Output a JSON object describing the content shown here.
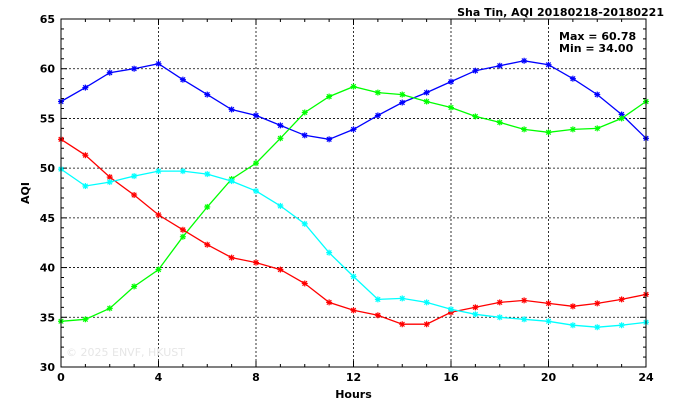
{
  "title": "Sha Tin, AQI 20180218-20180221",
  "stats": {
    "max": "Max = 60.78",
    "min": "Min = 34.00"
  },
  "watermark": "© 2025 ENVF, HKUST",
  "chart_data": {
    "type": "line",
    "title": "Sha Tin, AQI 20180218-20180221",
    "xlabel": "Hours",
    "ylabel": "AQI",
    "xlim": [
      0,
      24
    ],
    "ylim": [
      30,
      65
    ],
    "xticks": [
      0,
      4,
      8,
      12,
      16,
      20,
      24
    ],
    "yticks": [
      30,
      35,
      40,
      45,
      50,
      55,
      60,
      65
    ],
    "grid": true,
    "x": [
      0,
      1,
      2,
      3,
      4,
      5,
      6,
      7,
      8,
      9,
      10,
      11,
      12,
      13,
      14,
      15,
      16,
      17,
      18,
      19,
      20,
      21,
      22,
      23,
      24
    ],
    "series": [
      {
        "color": "#0000ff",
        "values": [
          56.7,
          58.1,
          59.6,
          60.0,
          60.5,
          58.9,
          57.4,
          55.9,
          55.3,
          54.3,
          53.3,
          52.9,
          53.9,
          55.3,
          56.6,
          57.6,
          58.7,
          59.8,
          60.3,
          60.8,
          60.4,
          59.0,
          57.4,
          55.4,
          53.0
        ]
      },
      {
        "color": "#00ff00",
        "values": [
          34.6,
          34.8,
          35.9,
          38.1,
          39.8,
          43.1,
          46.1,
          48.9,
          50.5,
          53.0,
          55.6,
          57.2,
          58.2,
          57.6,
          57.4,
          56.7,
          56.1,
          55.2,
          54.6,
          53.9,
          53.6,
          53.9,
          54.0,
          55.0,
          56.7
        ]
      },
      {
        "color": "#ff0000",
        "values": [
          52.9,
          51.3,
          49.1,
          47.3,
          45.3,
          43.8,
          42.3,
          41.0,
          40.5,
          39.8,
          38.4,
          36.5,
          35.7,
          35.2,
          34.3,
          34.3,
          35.5,
          36.0,
          36.5,
          36.7,
          36.4,
          36.1,
          36.4,
          36.8,
          37.3
        ]
      },
      {
        "color": "#00ffff",
        "values": [
          49.9,
          48.2,
          48.6,
          49.2,
          49.7,
          49.7,
          49.4,
          48.7,
          47.7,
          46.2,
          44.4,
          41.5,
          39.1,
          36.8,
          36.9,
          36.5,
          35.8,
          35.3,
          35.0,
          34.8,
          34.6,
          34.2,
          34.0,
          34.2,
          34.5
        ]
      }
    ]
  }
}
